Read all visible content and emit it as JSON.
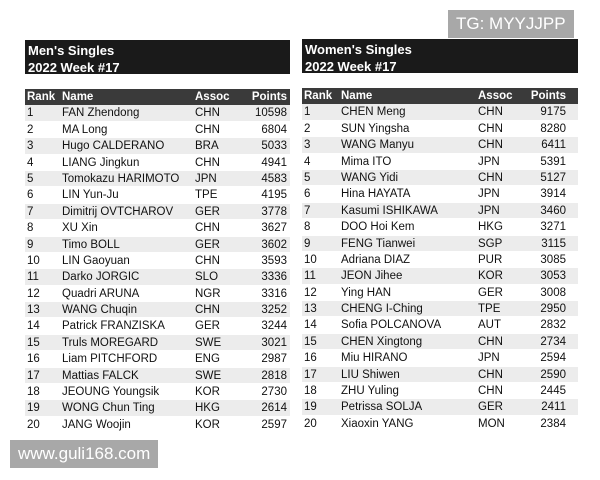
{
  "men": {
    "title": [
      "Men's Singles",
      "2022 Week #17"
    ],
    "columns": [
      "Rank",
      "Name",
      "Assoc",
      "Points"
    ],
    "rows": [
      [
        1,
        "FAN Zhendong",
        "CHN",
        10598
      ],
      [
        2,
        "MA Long",
        "CHN",
        6804
      ],
      [
        3,
        "Hugo CALDERANO",
        "BRA",
        5033
      ],
      [
        4,
        "LIANG Jingkun",
        "CHN",
        4941
      ],
      [
        5,
        "Tomokazu HARIMOTO",
        "JPN",
        4583
      ],
      [
        6,
        "LIN Yun-Ju",
        "TPE",
        4195
      ],
      [
        7,
        "Dimitrij OVTCHAROV",
        "GER",
        3778
      ],
      [
        8,
        "XU Xin",
        "CHN",
        3627
      ],
      [
        9,
        "Timo BOLL",
        "GER",
        3602
      ],
      [
        10,
        "LIN Gaoyuan",
        "CHN",
        3593
      ],
      [
        11,
        "Darko JORGIC",
        "SLO",
        3336
      ],
      [
        12,
        "Quadri ARUNA",
        "NGR",
        3316
      ],
      [
        13,
        "WANG Chuqin",
        "CHN",
        3252
      ],
      [
        14,
        "Patrick FRANZISKA",
        "GER",
        3244
      ],
      [
        15,
        "Truls MOREGARD",
        "SWE",
        3021
      ],
      [
        16,
        "Liam PITCHFORD",
        "ENG",
        2987
      ],
      [
        17,
        "Mattias FALCK",
        "SWE",
        2818
      ],
      [
        18,
        "JEOUNG Youngsik",
        "KOR",
        2730
      ],
      [
        19,
        "WONG Chun Ting",
        "HKG",
        2614
      ],
      [
        20,
        "JANG Woojin",
        "KOR",
        2597
      ]
    ]
  },
  "women": {
    "title": [
      "Women's Singles",
      "2022 Week #17"
    ],
    "columns": [
      "Rank",
      "Name",
      "Assoc",
      "Points"
    ],
    "rows": [
      [
        1,
        "CHEN Meng",
        "CHN",
        9175
      ],
      [
        2,
        "SUN Yingsha",
        "CHN",
        8280
      ],
      [
        3,
        "WANG Manyu",
        "CHN",
        6411
      ],
      [
        4,
        "Mima ITO",
        "JPN",
        5391
      ],
      [
        5,
        "WANG Yidi",
        "CHN",
        5127
      ],
      [
        6,
        "Hina HAYATA",
        "JPN",
        3914
      ],
      [
        7,
        "Kasumi ISHIKAWA",
        "JPN",
        3460
      ],
      [
        8,
        "DOO Hoi Kem",
        "HKG",
        3271
      ],
      [
        9,
        "FENG Tianwei",
        "SGP",
        3115
      ],
      [
        10,
        "Adriana DIAZ",
        "PUR",
        3085
      ],
      [
        11,
        "JEON Jihee",
        "KOR",
        3053
      ],
      [
        12,
        "Ying HAN",
        "GER",
        3008
      ],
      [
        13,
        "CHENG I-Ching",
        "TPE",
        2950
      ],
      [
        14,
        "Sofia POLCANOVA",
        "AUT",
        2832
      ],
      [
        15,
        "CHEN Xingtong",
        "CHN",
        2734
      ],
      [
        16,
        "Miu HIRANO",
        "JPN",
        2594
      ],
      [
        17,
        "LIU Shiwen",
        "CHN",
        2590
      ],
      [
        18,
        "ZHU Yuling",
        "CHN",
        2445
      ],
      [
        19,
        "Petrissa SOLJA",
        "GER",
        2411
      ],
      [
        20,
        "Xiaoxin YANG",
        "MON",
        2384
      ]
    ]
  },
  "watermark_top": "TG: MYYJJPP",
  "watermark_bottom": "www.guli168.com"
}
